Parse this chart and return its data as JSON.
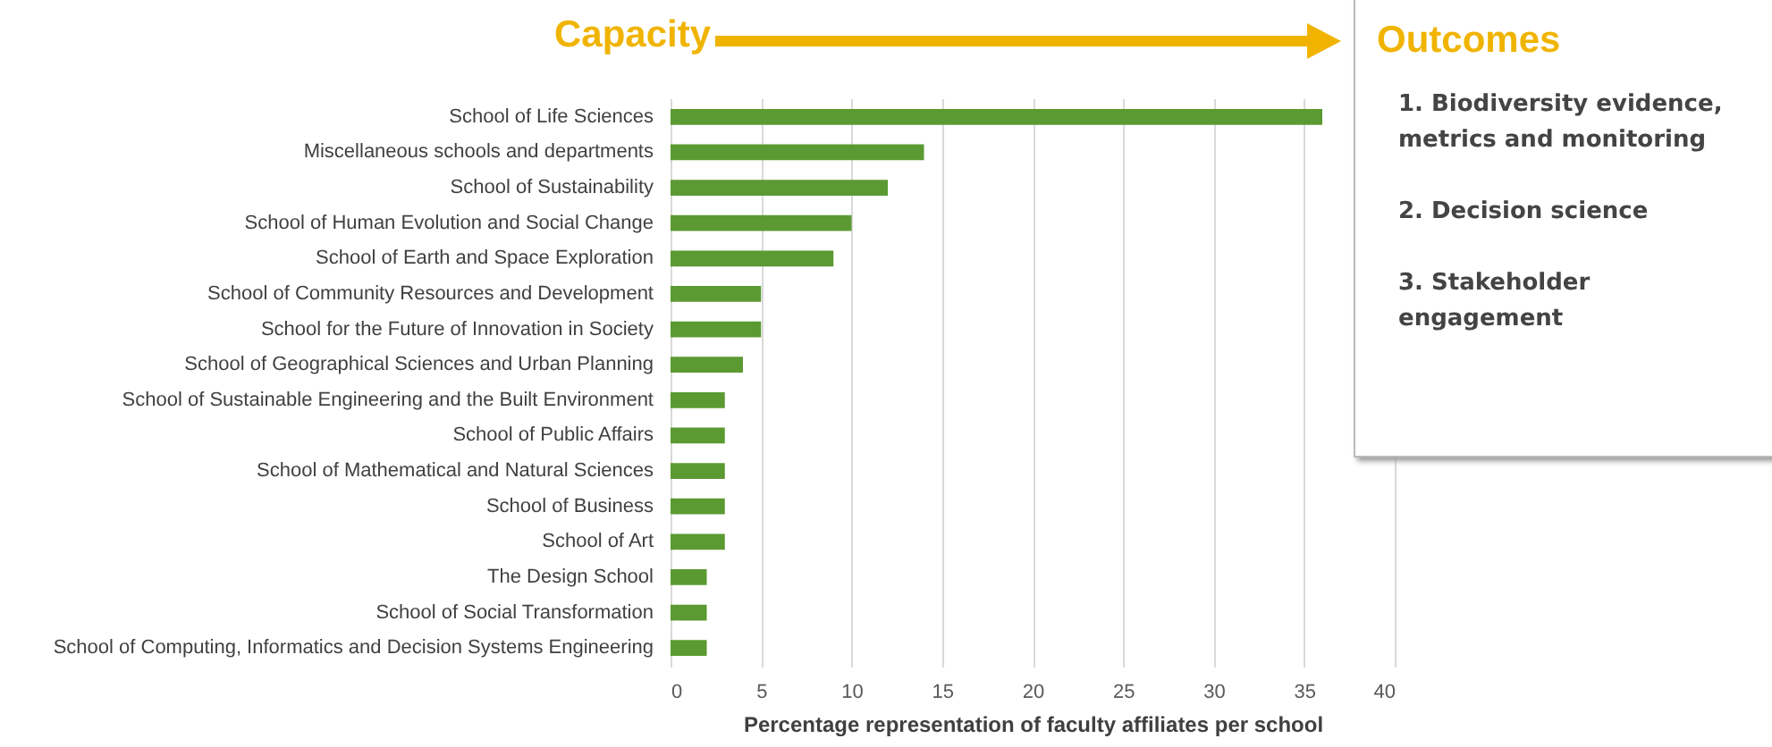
{
  "chart_data": {
    "type": "bar",
    "orientation": "horizontal",
    "title": "Capacity",
    "xlabel": "Percentage representation of faculty affiliates per school",
    "categories": [
      "School of Life Sciences",
      "Miscellaneous schools and departments",
      "School of Sustainability",
      "School of Human Evolution and Social Change",
      "School of Earth and Space Exploration",
      "School of Community Resources and Development",
      "School for the Future of Innovation in Society",
      "School of Geographical Sciences and Urban Planning",
      "School of Sustainable Engineering and the Built Environment",
      "School of Public Affairs",
      "School of Mathematical and Natural Sciences",
      "School of Business",
      "School of Art",
      "The Design School",
      "School of Social Transformation",
      "School of Computing, Informatics and Decision Systems Engineering"
    ],
    "values": [
      36,
      14,
      12,
      10,
      9,
      5,
      5,
      4,
      3,
      3,
      3,
      3,
      3,
      2,
      2,
      2
    ],
    "color": "#5b9a32",
    "xlim": [
      0,
      40
    ],
    "xticks": [
      0,
      5,
      10,
      15,
      20,
      25,
      30,
      35,
      40
    ],
    "grid": "x",
    "annotations": [
      "Outcomes",
      "1. Biodiversity evidence, metrics and monitoring",
      "2. Decision science",
      "3. Stakeholder engagement"
    ]
  }
}
